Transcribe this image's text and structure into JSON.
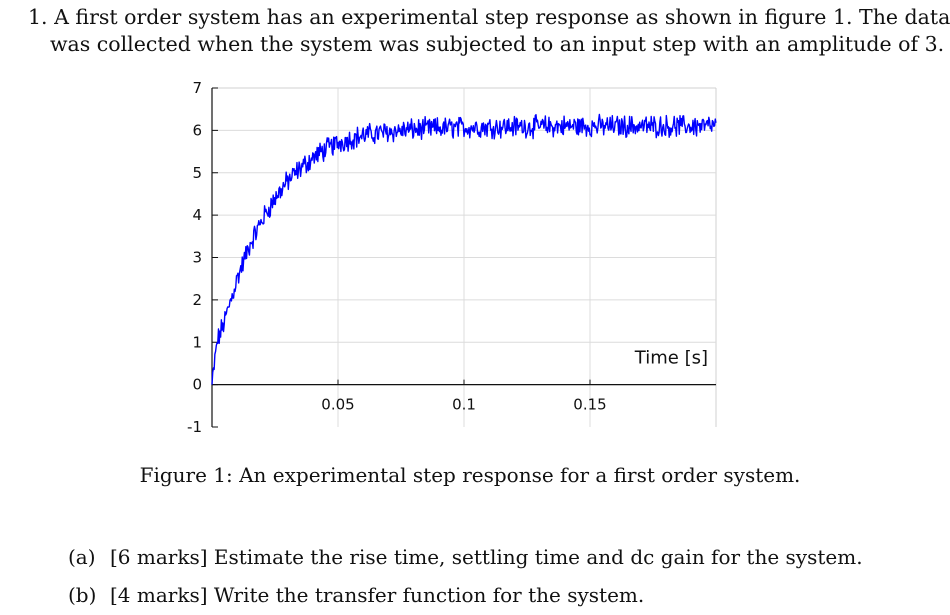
{
  "question": {
    "line1": "1. A first order system has an experimental step response as shown in figure 1.  The data",
    "line2": "was collected when the system was subjected to an input step with an amplitude of 3."
  },
  "figure": {
    "caption": "Figure 1: An experimental step response for a first order system."
  },
  "parts": [
    {
      "label": "(a)",
      "text": "[6 marks] Estimate the rise time, settling time and dc gain for the system."
    },
    {
      "label": "(b)",
      "text": "[4 marks] Write the transfer function for the system."
    }
  ],
  "chart_data": {
    "type": "line",
    "title": "",
    "xlabel": "Time [s]",
    "ylabel": "",
    "xlim": [
      0,
      0.2
    ],
    "ylim": [
      -1,
      7
    ],
    "xticks": [
      0.05,
      0.1,
      0.15
    ],
    "xtick_labels": [
      "0.05",
      "0.1",
      "0.15"
    ],
    "yticks": [
      -1,
      0,
      1,
      2,
      3,
      4,
      5,
      6,
      7
    ],
    "ytick_labels": [
      "-1",
      "0",
      "1",
      "2",
      "3",
      "4",
      "5",
      "6",
      "7"
    ],
    "grid": true,
    "line_color": "#0000ff",
    "series": [
      {
        "x": [
          0,
          0.002,
          0.005,
          0.01,
          0.015,
          0.02,
          0.025,
          0.03,
          0.035,
          0.04,
          0.045,
          0.05,
          0.055,
          0.06,
          0.07,
          0.08,
          0.09,
          0.1,
          0.11,
          0.12,
          0.13,
          0.14,
          0.15,
          0.16,
          0.17,
          0.18,
          0.19,
          0.2
        ],
        "y": [
          0,
          1.0,
          1.5,
          2.5,
          3.3,
          3.9,
          4.4,
          4.8,
          5.1,
          5.35,
          5.55,
          5.7,
          5.8,
          5.88,
          5.97,
          6.02,
          6.05,
          6.07,
          6.08,
          6.09,
          6.09,
          6.1,
          6.1,
          6.1,
          6.1,
          6.1,
          6.1,
          6.1
        ]
      }
    ]
  }
}
